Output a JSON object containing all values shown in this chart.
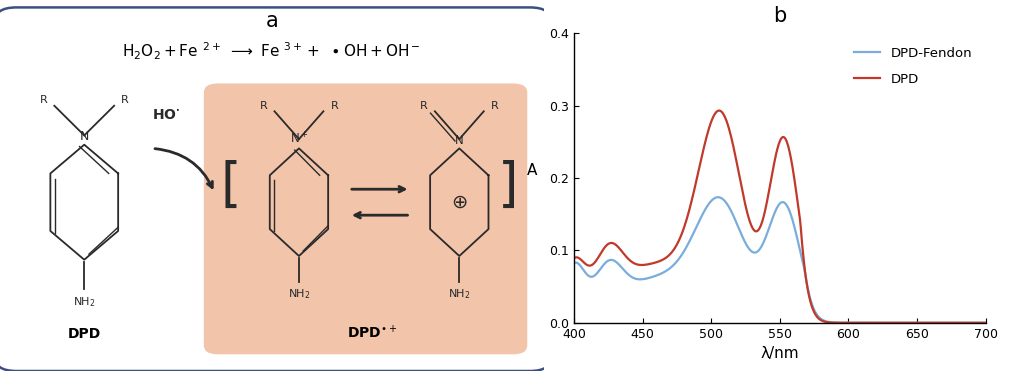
{
  "panel_b_title": "b",
  "panel_a_title": "a",
  "xlabel": "λ/nm",
  "ylabel": "A",
  "xlim": [
    400,
    700
  ],
  "ylim": [
    0,
    0.4
  ],
  "xticks": [
    400,
    450,
    500,
    550,
    600,
    650,
    700
  ],
  "yticks": [
    0,
    0.1,
    0.2,
    0.3,
    0.4
  ],
  "dpd_fendon_color": "#7aaddb",
  "dpd_color": "#c0392b",
  "legend_labels": [
    "DPD-Fendon",
    "DPD"
  ],
  "box_edgecolor": "#3a5080",
  "highlight_facecolor": "#f2c4aa",
  "dpd_label": "DPD",
  "dpd_radical_label": "DPD•+",
  "line_color": "#2a2a2a"
}
